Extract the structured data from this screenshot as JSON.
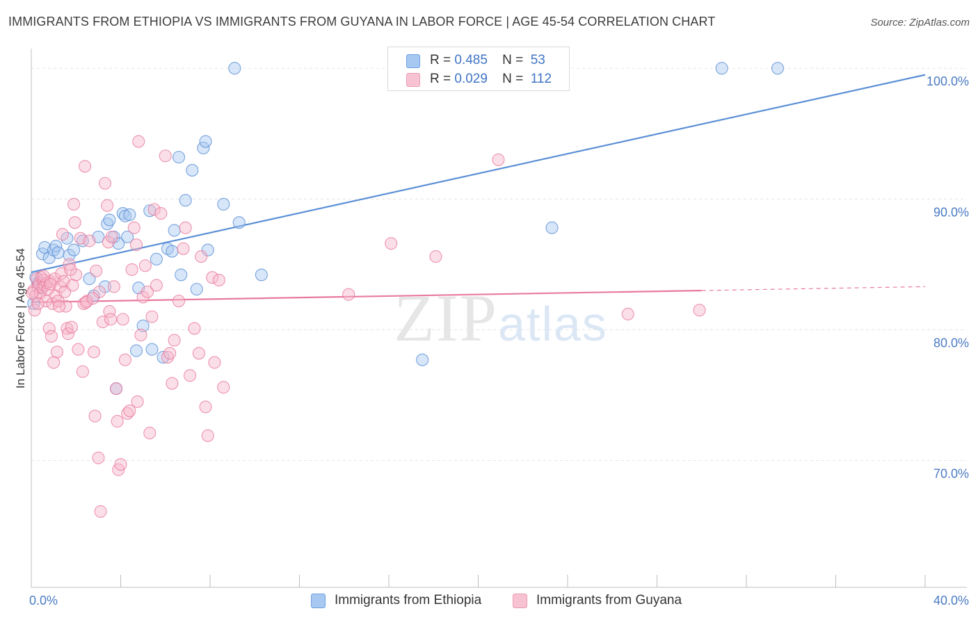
{
  "title": "IMMIGRANTS FROM ETHIOPIA VS IMMIGRANTS FROM GUYANA IN LABOR FORCE | AGE 45-54 CORRELATION CHART",
  "source": "Source: ZipAtlas.com",
  "watermark": "ZIPatlas",
  "legend_stats": [
    {
      "r_label": "R =",
      "r_value": "0.485",
      "n_label": "N =",
      "n_value": "53",
      "color": "#a7c8f0"
    },
    {
      "r_label": "R =",
      "r_value": "0.029",
      "n_label": "N =",
      "n_value": "112",
      "color": "#f7b8cc"
    }
  ],
  "chart_data": {
    "type": "scatter",
    "title": "IMMIGRANTS FROM ETHIOPIA VS IMMIGRANTS FROM GUYANA IN LABOR FORCE | AGE 45-54 CORRELATION CHART",
    "xlabel": "",
    "ylabel": "In Labor Force | Age 45-54",
    "xlim": [
      0,
      40
    ],
    "ylim": [
      60.3,
      101.5
    ],
    "x_tick_labels": [
      "0.0%",
      "40.0%"
    ],
    "y_ticks": [
      70,
      80,
      90,
      100
    ],
    "y_tick_labels": [
      "70.0%",
      "80.0%",
      "90.0%",
      "100.0%"
    ],
    "grid": true,
    "legend_position": "bottom",
    "series": [
      {
        "name": "Immigrants from Ethiopia",
        "color": "#5b8fd6",
        "fill": "#a7c8f0",
        "trend": {
          "x0": 0,
          "y0": 84.4,
          "x1": 40,
          "y1": 99.5,
          "dashed_from": null
        },
        "points": [
          [
            0.1,
            82.0
          ],
          [
            0.3,
            83.6
          ],
          [
            0.4,
            83.2
          ],
          [
            0.5,
            85.8
          ],
          [
            0.6,
            86.3
          ],
          [
            0.8,
            85.5
          ],
          [
            1.0,
            86.1
          ],
          [
            1.1,
            86.4
          ],
          [
            1.2,
            85.9
          ],
          [
            1.6,
            87.0
          ],
          [
            1.7,
            85.7
          ],
          [
            1.9,
            86.1
          ],
          [
            2.3,
            86.8
          ],
          [
            2.6,
            83.9
          ],
          [
            2.8,
            82.6
          ],
          [
            3.0,
            87.1
          ],
          [
            3.3,
            83.3
          ],
          [
            3.4,
            88.1
          ],
          [
            3.5,
            88.4
          ],
          [
            3.7,
            87.1
          ],
          [
            3.8,
            75.5
          ],
          [
            3.9,
            86.6
          ],
          [
            4.1,
            88.9
          ],
          [
            4.2,
            88.7
          ],
          [
            4.3,
            87.1
          ],
          [
            4.4,
            88.8
          ],
          [
            4.7,
            78.4
          ],
          [
            4.8,
            83.2
          ],
          [
            5.0,
            80.3
          ],
          [
            5.3,
            89.1
          ],
          [
            5.4,
            78.5
          ],
          [
            5.6,
            85.4
          ],
          [
            5.9,
            77.9
          ],
          [
            6.1,
            86.2
          ],
          [
            6.3,
            86.0
          ],
          [
            6.4,
            87.6
          ],
          [
            6.6,
            93.2
          ],
          [
            6.7,
            84.2
          ],
          [
            6.9,
            89.9
          ],
          [
            7.2,
            92.2
          ],
          [
            7.4,
            83.1
          ],
          [
            7.7,
            93.9
          ],
          [
            7.8,
            94.4
          ],
          [
            7.9,
            86.1
          ],
          [
            8.6,
            89.6
          ],
          [
            9.1,
            100.0
          ],
          [
            9.3,
            88.2
          ],
          [
            10.3,
            84.2
          ],
          [
            17.5,
            77.7
          ],
          [
            23.3,
            87.8
          ],
          [
            30.9,
            100.0
          ],
          [
            33.4,
            100.0
          ],
          [
            0.2,
            84.0
          ]
        ]
      },
      {
        "name": "Immigrants from Guyana",
        "color": "#e87a9c",
        "fill": "#f7b8cc",
        "trend": {
          "x0": 0,
          "y0": 82.1,
          "x1": 40,
          "y1": 83.3,
          "dashed_from": 30
        },
        "points": [
          [
            0.1,
            83.0
          ],
          [
            0.2,
            82.6
          ],
          [
            0.25,
            83.9
          ],
          [
            0.3,
            83.3
          ],
          [
            0.35,
            83.5
          ],
          [
            0.4,
            82.8
          ],
          [
            0.45,
            84.0
          ],
          [
            0.5,
            83.2
          ],
          [
            0.55,
            83.8
          ],
          [
            0.6,
            83.4
          ],
          [
            0.65,
            82.2
          ],
          [
            0.7,
            83.6
          ],
          [
            0.75,
            83.1
          ],
          [
            0.8,
            80.1
          ],
          [
            0.85,
            83.7
          ],
          [
            0.9,
            79.5
          ],
          [
            0.95,
            82.0
          ],
          [
            1.0,
            77.5
          ],
          [
            1.05,
            83.9
          ],
          [
            1.1,
            82.6
          ],
          [
            1.15,
            78.3
          ],
          [
            1.2,
            82.2
          ],
          [
            1.3,
            83.3
          ],
          [
            1.35,
            84.3
          ],
          [
            1.4,
            87.3
          ],
          [
            1.45,
            83.7
          ],
          [
            1.5,
            82.9
          ],
          [
            1.55,
            81.8
          ],
          [
            1.6,
            80.1
          ],
          [
            1.65,
            79.7
          ],
          [
            1.7,
            85.0
          ],
          [
            1.8,
            80.2
          ],
          [
            1.85,
            83.4
          ],
          [
            1.9,
            89.6
          ],
          [
            1.95,
            88.2
          ],
          [
            2.0,
            84.2
          ],
          [
            2.1,
            78.5
          ],
          [
            2.2,
            87.0
          ],
          [
            2.3,
            76.8
          ],
          [
            2.35,
            82.0
          ],
          [
            2.4,
            92.5
          ],
          [
            2.5,
            82.2
          ],
          [
            2.6,
            86.8
          ],
          [
            2.8,
            78.3
          ],
          [
            2.85,
            73.4
          ],
          [
            2.9,
            84.5
          ],
          [
            3.0,
            70.2
          ],
          [
            3.05,
            82.9
          ],
          [
            3.1,
            66.1
          ],
          [
            3.2,
            80.6
          ],
          [
            3.3,
            91.2
          ],
          [
            3.4,
            89.5
          ],
          [
            3.45,
            86.7
          ],
          [
            3.5,
            81.4
          ],
          [
            3.6,
            87.1
          ],
          [
            3.7,
            83.3
          ],
          [
            3.8,
            75.5
          ],
          [
            3.85,
            73.0
          ],
          [
            3.9,
            69.3
          ],
          [
            4.0,
            69.7
          ],
          [
            4.1,
            80.8
          ],
          [
            4.2,
            77.7
          ],
          [
            4.3,
            73.6
          ],
          [
            4.4,
            73.8
          ],
          [
            4.5,
            84.6
          ],
          [
            4.6,
            87.8
          ],
          [
            4.7,
            86.5
          ],
          [
            4.75,
            74.5
          ],
          [
            4.8,
            94.4
          ],
          [
            4.9,
            79.6
          ],
          [
            5.0,
            82.5
          ],
          [
            5.1,
            84.9
          ],
          [
            5.2,
            82.9
          ],
          [
            5.3,
            72.1
          ],
          [
            5.4,
            81.0
          ],
          [
            5.5,
            89.2
          ],
          [
            5.6,
            83.4
          ],
          [
            5.8,
            88.9
          ],
          [
            6.0,
            93.3
          ],
          [
            6.1,
            77.9
          ],
          [
            6.2,
            78.2
          ],
          [
            6.3,
            75.9
          ],
          [
            6.4,
            79.2
          ],
          [
            6.6,
            82.2
          ],
          [
            6.9,
            87.8
          ],
          [
            7.1,
            76.5
          ],
          [
            7.3,
            80.1
          ],
          [
            7.5,
            78.2
          ],
          [
            7.6,
            85.6
          ],
          [
            7.8,
            74.1
          ],
          [
            7.9,
            71.9
          ],
          [
            8.1,
            84.0
          ],
          [
            8.2,
            77.5
          ],
          [
            8.4,
            83.8
          ],
          [
            8.6,
            75.6
          ],
          [
            14.2,
            82.7
          ],
          [
            16.1,
            86.6
          ],
          [
            18.1,
            85.6
          ],
          [
            20.9,
            93.0
          ],
          [
            26.7,
            81.2
          ],
          [
            29.9,
            81.5
          ],
          [
            0.15,
            81.5
          ],
          [
            1.25,
            81.8
          ],
          [
            2.45,
            82.1
          ],
          [
            3.55,
            80.8
          ],
          [
            0.55,
            84.1
          ],
          [
            0.05,
            82.8
          ],
          [
            1.75,
            84.6
          ],
          [
            2.75,
            82.4
          ],
          [
            0.3,
            82.0
          ],
          [
            0.85,
            83.5
          ],
          [
            6.8,
            86.2
          ]
        ]
      }
    ]
  }
}
